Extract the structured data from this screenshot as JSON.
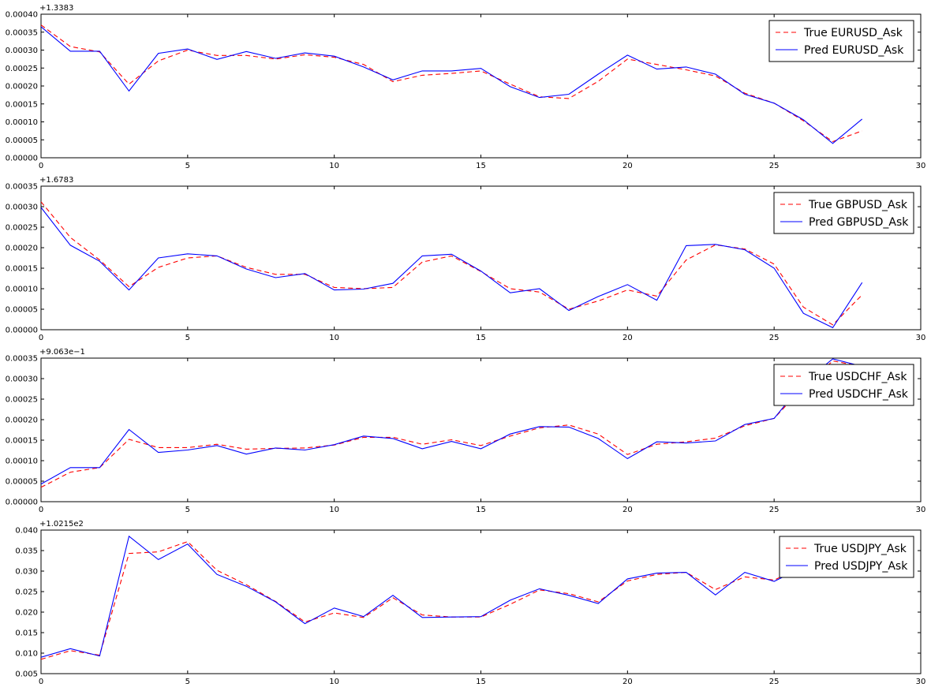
{
  "colors": {
    "true_series": "#ff0000",
    "pred_series": "#0000ff",
    "axes": "#000000",
    "background": "#ffffff"
  },
  "chart_data": [
    {
      "type": "line",
      "offset_label": "+1.3383",
      "xlim": [
        0,
        30
      ],
      "ylim": [
        0,
        0.0004
      ],
      "xticks": [
        0,
        5,
        10,
        15,
        20,
        25,
        30
      ],
      "yticks": [
        "0.00000",
        "0.00005",
        "0.00010",
        "0.00015",
        "0.00020",
        "0.00025",
        "0.00030",
        "0.00035",
        "0.00040"
      ],
      "legend_position": "upper right",
      "x": [
        0,
        1,
        2,
        3,
        4,
        5,
        6,
        7,
        8,
        9,
        10,
        11,
        12,
        13,
        14,
        15,
        16,
        17,
        18,
        19,
        20,
        21,
        22,
        23,
        24,
        25,
        26,
        27,
        28
      ],
      "series": [
        {
          "name": "True EURUSD_Ask",
          "style": "dashed",
          "color": "#ff0000",
          "values": [
            0.00037,
            0.00031,
            0.000295,
            0.000205,
            0.00027,
            0.0003,
            0.000285,
            0.000285,
            0.000275,
            0.000287,
            0.00028,
            0.00026,
            0.000212,
            0.00023,
            0.000235,
            0.000242,
            0.000205,
            0.00017,
            0.000165,
            0.000213,
            0.000275,
            0.00026,
            0.000245,
            0.000228,
            0.00018,
            0.000152,
            0.000103,
            4.5e-05,
            7.5e-05
          ]
        },
        {
          "name": "Pred EURUSD_Ask",
          "style": "solid",
          "color": "#0000ff",
          "values": [
            0.000365,
            0.000297,
            0.000297,
            0.000186,
            0.000291,
            0.000303,
            0.000274,
            0.000296,
            0.000277,
            0.000292,
            0.000283,
            0.000253,
            0.000217,
            0.000242,
            0.000242,
            0.000249,
            0.000198,
            0.000168,
            0.000177,
            0.000233,
            0.000286,
            0.000247,
            0.000253,
            0.000233,
            0.000177,
            0.000152,
            0.000106,
            4e-05,
            0.000108
          ]
        }
      ]
    },
    {
      "type": "line",
      "offset_label": "+1.6783",
      "xlim": [
        0,
        30
      ],
      "ylim": [
        0,
        0.00035
      ],
      "xticks": [
        0,
        5,
        10,
        15,
        20,
        25,
        30
      ],
      "yticks": [
        "0.00000",
        "0.00005",
        "0.00010",
        "0.00015",
        "0.00020",
        "0.00025",
        "0.00030",
        "0.00035"
      ],
      "legend_position": "upper right",
      "x": [
        0,
        1,
        2,
        3,
        4,
        5,
        6,
        7,
        8,
        9,
        10,
        11,
        12,
        13,
        14,
        15,
        16,
        17,
        18,
        19,
        20,
        21,
        22,
        23,
        24,
        25,
        26,
        27,
        28
      ],
      "series": [
        {
          "name": "True GBPUSD_Ask",
          "style": "dashed",
          "color": "#ff0000",
          "values": [
            0.000312,
            0.000225,
            0.00017,
            0.000105,
            0.000152,
            0.000175,
            0.00018,
            0.000152,
            0.000135,
            0.000135,
            0.000103,
            0.0001,
            0.000103,
            0.000165,
            0.00018,
            0.000142,
            0.0001,
            9.2e-05,
            5e-05,
            7e-05,
            9.7e-05,
            8.2e-05,
            0.00017,
            0.000207,
            0.000197,
            0.00016,
            5.5e-05,
            1.2e-05,
            8.5e-05
          ]
        },
        {
          "name": "Pred GBPUSD_Ask",
          "style": "solid",
          "color": "#0000ff",
          "values": [
            0.000298,
            0.000206,
            0.000167,
            9.7e-05,
            0.000175,
            0.000185,
            0.00018,
            0.000148,
            0.000127,
            0.000137,
            9.7e-05,
            9.9e-05,
            0.000113,
            0.00018,
            0.000184,
            0.000143,
            9e-05,
            0.0001,
            4.7e-05,
            8.1e-05,
            0.00011,
            7.2e-05,
            0.000205,
            0.000208,
            0.000195,
            0.00015,
            4e-05,
            5e-06,
            0.000115
          ]
        }
      ]
    },
    {
      "type": "line",
      "offset_label": "+9.063e−1",
      "xlim": [
        0,
        30
      ],
      "ylim": [
        0,
        0.00035
      ],
      "xticks": [
        0,
        5,
        10,
        15,
        20,
        25,
        30
      ],
      "yticks": [
        "0.00000",
        "0.00005",
        "0.00010",
        "0.00015",
        "0.00020",
        "0.00025",
        "0.00030",
        "0.00035"
      ],
      "legend_position": "upper right",
      "x": [
        0,
        1,
        2,
        3,
        4,
        5,
        6,
        7,
        8,
        9,
        10,
        11,
        12,
        13,
        14,
        15,
        16,
        17,
        18,
        19,
        20,
        21,
        22,
        23,
        24,
        25,
        26,
        27,
        28
      ],
      "series": [
        {
          "name": "True USDCHF_Ask",
          "style": "dashed",
          "color": "#ff0000",
          "values": [
            3.5e-05,
            7.2e-05,
            8.3e-05,
            0.000152,
            0.000132,
            0.000132,
            0.00014,
            0.000128,
            0.00013,
            0.000131,
            0.000138,
            0.000157,
            0.000157,
            0.00014,
            0.000151,
            0.000137,
            0.00016,
            0.00018,
            0.000187,
            0.000165,
            0.000115,
            0.00014,
            0.000146,
            0.000155,
            0.000185,
            0.000203,
            0.00028,
            0.000343,
            0.00033
          ]
        },
        {
          "name": "Pred USDCHF_Ask",
          "style": "solid",
          "color": "#0000ff",
          "values": [
            4.3e-05,
            8.3e-05,
            8.3e-05,
            0.000176,
            0.00012,
            0.000126,
            0.000137,
            0.000116,
            0.000131,
            0.000126,
            0.000139,
            0.00016,
            0.000154,
            0.000129,
            0.000147,
            0.000129,
            0.000165,
            0.000183,
            0.000182,
            0.000154,
            0.000105,
            0.000146,
            0.000143,
            0.000148,
            0.000188,
            0.000203,
            0.00029,
            0.000348,
            0.00033
          ]
        }
      ]
    },
    {
      "type": "line",
      "offset_label": "+1.0215e2",
      "xlim": [
        0,
        30
      ],
      "ylim": [
        0.005,
        0.04
      ],
      "xticks": [
        0,
        5,
        10,
        15,
        20,
        25,
        30
      ],
      "yticks": [
        "0.005",
        "0.010",
        "0.015",
        "0.020",
        "0.025",
        "0.030",
        "0.035",
        "0.040"
      ],
      "legend_position": "upper right",
      "x": [
        0,
        1,
        2,
        3,
        4,
        5,
        6,
        7,
        8,
        9,
        10,
        11,
        12,
        13,
        14,
        15,
        16,
        17,
        18,
        19,
        20,
        21,
        22,
        23,
        24,
        25,
        26,
        27,
        28
      ],
      "series": [
        {
          "name": "True USDJPY_Ask",
          "style": "dashed",
          "color": "#ff0000",
          "values": [
            0.0085,
            0.0106,
            0.0095,
            0.0343,
            0.0347,
            0.0372,
            0.0302,
            0.0267,
            0.0226,
            0.0176,
            0.0198,
            0.0187,
            0.0235,
            0.0193,
            0.0188,
            0.0188,
            0.0219,
            0.0254,
            0.0245,
            0.0225,
            0.0276,
            0.0292,
            0.0297,
            0.0255,
            0.0286,
            0.0278,
            0.0312,
            0.0325,
            0.033
          ]
        },
        {
          "name": "Pred USDJPY_Ask",
          "style": "solid",
          "color": "#0000ff",
          "values": [
            0.009,
            0.0111,
            0.0093,
            0.0385,
            0.0328,
            0.0366,
            0.0292,
            0.0263,
            0.0225,
            0.0172,
            0.021,
            0.0189,
            0.0241,
            0.0187,
            0.0188,
            0.0189,
            0.0229,
            0.0257,
            0.0241,
            0.0221,
            0.0281,
            0.0295,
            0.0297,
            0.0242,
            0.0297,
            0.0275,
            0.031,
            0.0325,
            0.033
          ]
        }
      ]
    }
  ]
}
